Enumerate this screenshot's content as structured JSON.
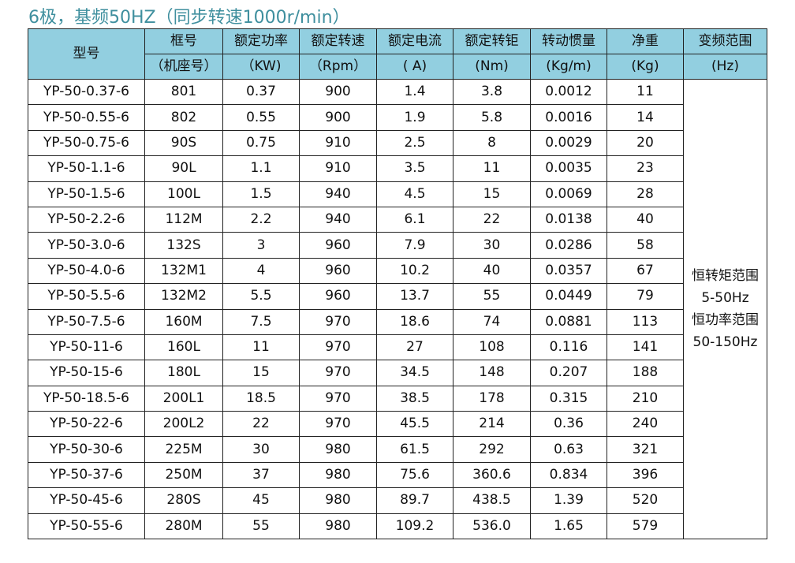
{
  "title": "6极，基频50HZ（同步转速1000r/min）",
  "header_color": "#92cfe0",
  "headers": [
    {
      "l1": "型号",
      "l2": ""
    },
    {
      "l1": "框号",
      "l2": "（机座号）"
    },
    {
      "l1": "额定功率",
      "l2": "（KW)"
    },
    {
      "l1": "额定转速",
      "l2": "（Rpm）"
    },
    {
      "l1": "额定电流",
      "l2": "( A)"
    },
    {
      "l1": "额定转钜",
      "l2": "(Nm)"
    },
    {
      "l1": "转动惯量",
      "l2": "(Kg/m)"
    },
    {
      "l1": "净重",
      "l2": "(Kg)"
    },
    {
      "l1": "变频范围",
      "l2": "(Hz)"
    }
  ],
  "rows": [
    [
      "YP-50-0.37-6",
      "801",
      "0.37",
      "900",
      "1.4",
      "3.8",
      "0.0012",
      "11"
    ],
    [
      "YP-50-0.55-6",
      "802",
      "0.55",
      "900",
      "1.9",
      "5.8",
      "0.0016",
      "14"
    ],
    [
      "YP-50-0.75-6",
      "90S",
      "0.75",
      "910",
      "2.5",
      "8",
      "0.0029",
      "20"
    ],
    [
      "YP-50-1.1-6",
      "90L",
      "1.1",
      "910",
      "3.5",
      "11",
      "0.0035",
      "23"
    ],
    [
      "YP-50-1.5-6",
      "100L",
      "1.5",
      "940",
      "4.5",
      "15",
      "0.0069",
      "28"
    ],
    [
      "YP-50-2.2-6",
      "112M",
      "2.2",
      "940",
      "6.1",
      "22",
      "0.0138",
      "40"
    ],
    [
      "YP-50-3.0-6",
      "132S",
      "3",
      "960",
      "7.9",
      "30",
      "0.0286",
      "58"
    ],
    [
      "YP-50-4.0-6",
      "132M1",
      "4",
      "960",
      "10.2",
      "40",
      "0.0357",
      "67"
    ],
    [
      "YP-50-5.5-6",
      "132M2",
      "5.5",
      "960",
      "13.7",
      "55",
      "0.0449",
      "79"
    ],
    [
      "YP-50-7.5-6",
      "160M",
      "7.5",
      "970",
      "18.6",
      "74",
      "0.0881",
      "113"
    ],
    [
      "YP-50-11-6",
      "160L",
      "11",
      "970",
      "27",
      "108",
      "0.116",
      "141"
    ],
    [
      "YP-50-15-6",
      "180L",
      "15",
      "970",
      "34.5",
      "148",
      "0.207",
      "188"
    ],
    [
      "YP-50-18.5-6",
      "200L1",
      "18.5",
      "970",
      "38.5",
      "178",
      "0.315",
      "210"
    ],
    [
      "YP-50-22-6",
      "200L2",
      "22",
      "970",
      "45.5",
      "214",
      "0.36",
      "240"
    ],
    [
      "YP-50-30-6",
      "225M",
      "30",
      "980",
      "61.5",
      "292",
      "0.63",
      "321"
    ],
    [
      "YP-50-37-6",
      "250M",
      "37",
      "980",
      "75.6",
      "360.6",
      "0.834",
      "396"
    ],
    [
      "YP-50-45-6",
      "280S",
      "45",
      "980",
      "89.7",
      "438.5",
      "1.39",
      "520"
    ],
    [
      "YP-50-55-6",
      "280M",
      "55",
      "980",
      "109.2",
      "536.0",
      "1.65",
      "579"
    ]
  ],
  "freq_range": [
    "恒转矩范围",
    "5-50Hz",
    "恒功率范围",
    "50-150Hz"
  ]
}
